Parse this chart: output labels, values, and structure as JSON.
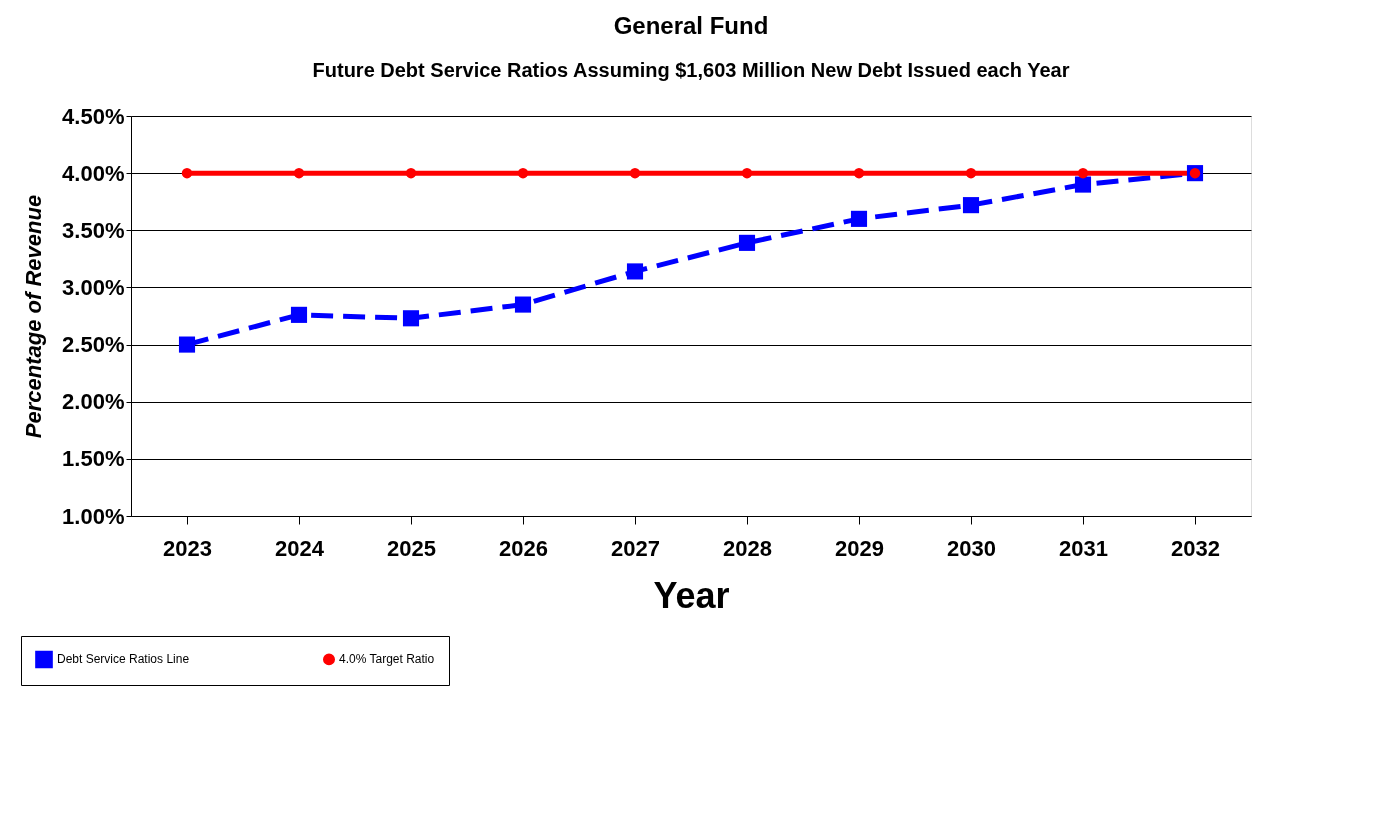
{
  "chart_data": {
    "type": "line",
    "title": "General Fund",
    "subtitle": "Future Debt Service Ratios Assuming $1,603 Million New Debt Issued each Year",
    "xlabel": "Year",
    "ylabel": "Percentage of Revenue",
    "categories": [
      "2023",
      "2024",
      "2025",
      "2026",
      "2027",
      "2028",
      "2029",
      "2030",
      "2031",
      "2032"
    ],
    "series": [
      {
        "name": "Debt Service Ratios Line",
        "color": "#0000ff",
        "marker": "square",
        "line_style": "dashed",
        "values": [
          2.5,
          2.76,
          2.73,
          2.85,
          3.14,
          3.39,
          3.6,
          3.72,
          3.9,
          4.0
        ]
      },
      {
        "name": "4.0% Target Ratio",
        "color": "#ff0000",
        "marker": "circle",
        "line_style": "solid",
        "values": [
          4.0,
          4.0,
          4.0,
          4.0,
          4.0,
          4.0,
          4.0,
          4.0,
          4.0,
          4.0
        ]
      }
    ],
    "ylim": [
      1.0,
      4.5
    ],
    "yticks": [
      {
        "value": 1.0,
        "label": "1.00%"
      },
      {
        "value": 1.5,
        "label": "1.50%"
      },
      {
        "value": 2.0,
        "label": "2.00%"
      },
      {
        "value": 2.5,
        "label": "2.50%"
      },
      {
        "value": 3.0,
        "label": "3.00%"
      },
      {
        "value": 3.5,
        "label": "3.50%"
      },
      {
        "value": 4.0,
        "label": "4.00%"
      },
      {
        "value": 4.5,
        "label": "4.50%"
      }
    ],
    "grid": "y",
    "legend": "bottom left"
  }
}
